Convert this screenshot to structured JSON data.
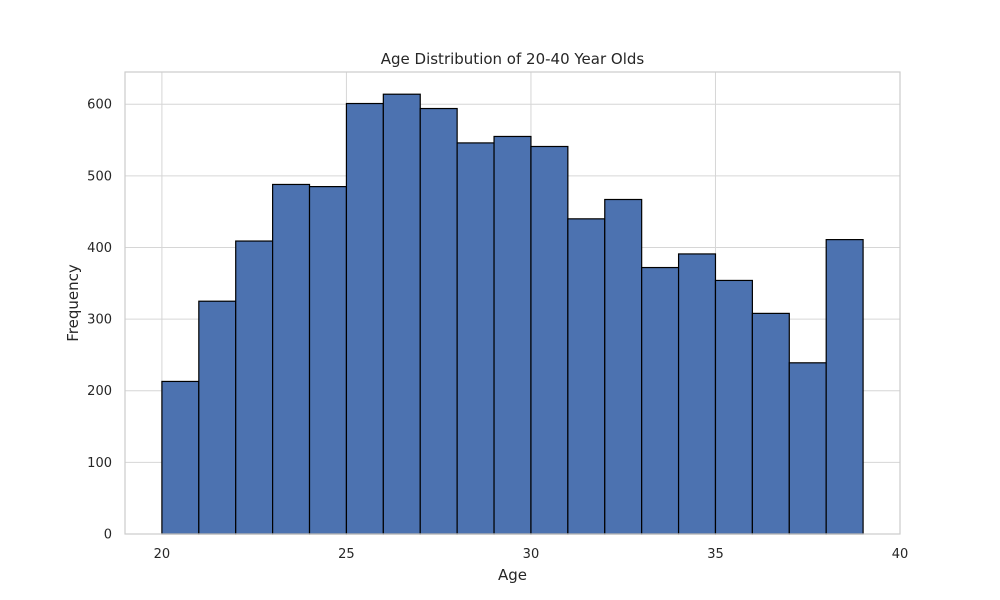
{
  "chart_data": {
    "type": "bar",
    "title": "Age Distribution of 20-40 Year Olds",
    "xlabel": "Age",
    "ylabel": "Frequency",
    "bin_edges": [
      20,
      21,
      22,
      23,
      24,
      25,
      26,
      27,
      28,
      29,
      30,
      31,
      32,
      33,
      34,
      35,
      36,
      37,
      38,
      39
    ],
    "values": [
      213,
      325,
      409,
      488,
      485,
      601,
      614,
      594,
      546,
      555,
      541,
      440,
      467,
      372,
      391,
      354,
      308,
      239,
      411
    ],
    "xlim": [
      19,
      40
    ],
    "ylim": [
      0,
      645
    ],
    "xticks": [
      20,
      25,
      30,
      35,
      40
    ],
    "yticks": [
      0,
      100,
      200,
      300,
      400,
      500,
      600
    ],
    "grid": true,
    "bar_color": "#4c72b0",
    "edge_color": "#000000"
  }
}
